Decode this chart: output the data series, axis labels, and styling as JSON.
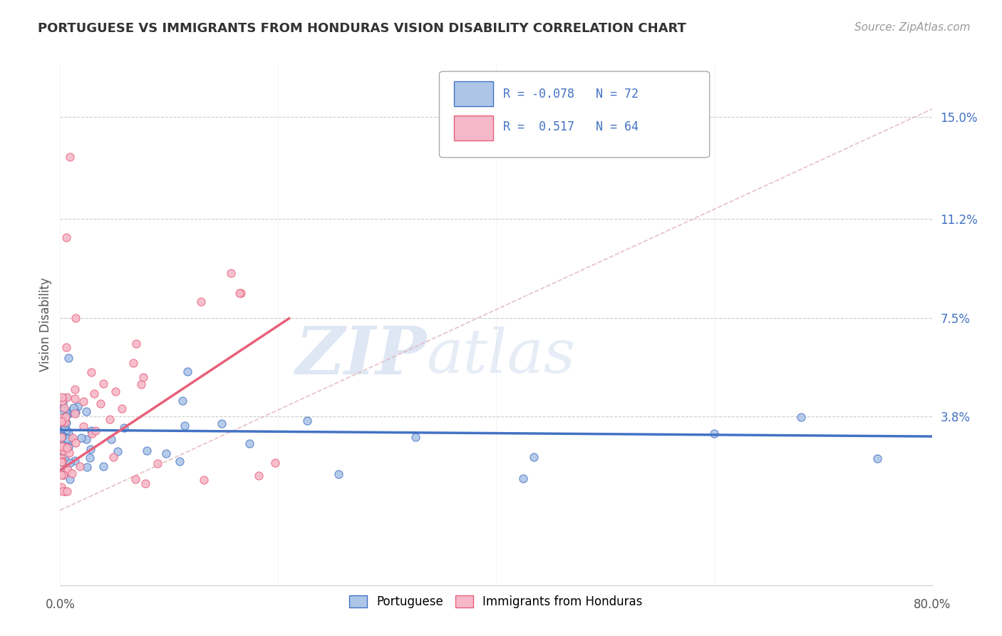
{
  "title": "PORTUGUESE VS IMMIGRANTS FROM HONDURAS VISION DISABILITY CORRELATION CHART",
  "source": "Source: ZipAtlas.com",
  "ylabel": "Vision Disability",
  "ytick_vals": [
    0.038,
    0.075,
    0.112,
    0.15
  ],
  "ytick_labels": [
    "3.8%",
    "7.5%",
    "11.2%",
    "15.0%"
  ],
  "xlim": [
    0.0,
    0.8
  ],
  "ylim": [
    -0.025,
    0.17
  ],
  "color_portuguese": "#adc6e8",
  "color_honduras": "#f5b8c8",
  "color_line_portuguese": "#4472c4",
  "color_line_honduras": "#e8607a",
  "color_diagonal": "#e0b0b8",
  "watermark_zip": "ZIP",
  "watermark_atlas": "atlas",
  "seed_port": 42,
  "seed_hond": 99
}
